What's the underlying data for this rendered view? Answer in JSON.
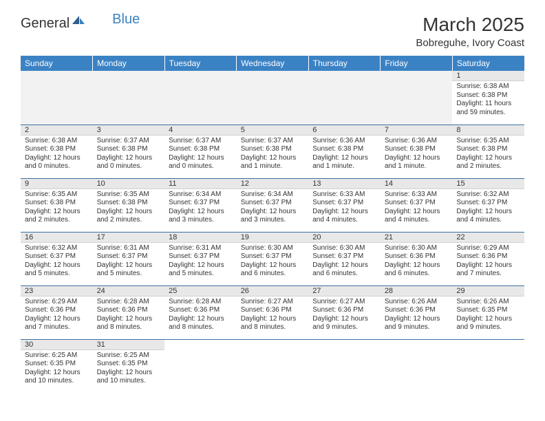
{
  "brand": {
    "part1": "General",
    "part2": "Blue"
  },
  "title": "March 2025",
  "location": "Bobreguhe, Ivory Coast",
  "colors": {
    "header_bg": "#3b82c4",
    "header_text": "#ffffff",
    "daynum_bg": "#e8e8e8",
    "week_divider": "#3b6fa0",
    "logo_blue": "#3b82c4",
    "text": "#333333",
    "background": "#ffffff"
  },
  "typography": {
    "title_fontsize": 28,
    "location_fontsize": 15,
    "dayheader_fontsize": 12,
    "daynum_fontsize": 11,
    "body_fontsize": 10
  },
  "day_headers": [
    "Sunday",
    "Monday",
    "Tuesday",
    "Wednesday",
    "Thursday",
    "Friday",
    "Saturday"
  ],
  "weeks": [
    [
      null,
      null,
      null,
      null,
      null,
      null,
      {
        "n": "1",
        "sunrise": "Sunrise: 6:38 AM",
        "sunset": "Sunset: 6:38 PM",
        "daylight": "Daylight: 11 hours and 59 minutes."
      }
    ],
    [
      {
        "n": "2",
        "sunrise": "Sunrise: 6:38 AM",
        "sunset": "Sunset: 6:38 PM",
        "daylight": "Daylight: 12 hours and 0 minutes."
      },
      {
        "n": "3",
        "sunrise": "Sunrise: 6:37 AM",
        "sunset": "Sunset: 6:38 PM",
        "daylight": "Daylight: 12 hours and 0 minutes."
      },
      {
        "n": "4",
        "sunrise": "Sunrise: 6:37 AM",
        "sunset": "Sunset: 6:38 PM",
        "daylight": "Daylight: 12 hours and 0 minutes."
      },
      {
        "n": "5",
        "sunrise": "Sunrise: 6:37 AM",
        "sunset": "Sunset: 6:38 PM",
        "daylight": "Daylight: 12 hours and 1 minute."
      },
      {
        "n": "6",
        "sunrise": "Sunrise: 6:36 AM",
        "sunset": "Sunset: 6:38 PM",
        "daylight": "Daylight: 12 hours and 1 minute."
      },
      {
        "n": "7",
        "sunrise": "Sunrise: 6:36 AM",
        "sunset": "Sunset: 6:38 PM",
        "daylight": "Daylight: 12 hours and 1 minute."
      },
      {
        "n": "8",
        "sunrise": "Sunrise: 6:35 AM",
        "sunset": "Sunset: 6:38 PM",
        "daylight": "Daylight: 12 hours and 2 minutes."
      }
    ],
    [
      {
        "n": "9",
        "sunrise": "Sunrise: 6:35 AM",
        "sunset": "Sunset: 6:38 PM",
        "daylight": "Daylight: 12 hours and 2 minutes."
      },
      {
        "n": "10",
        "sunrise": "Sunrise: 6:35 AM",
        "sunset": "Sunset: 6:38 PM",
        "daylight": "Daylight: 12 hours and 2 minutes."
      },
      {
        "n": "11",
        "sunrise": "Sunrise: 6:34 AM",
        "sunset": "Sunset: 6:37 PM",
        "daylight": "Daylight: 12 hours and 3 minutes."
      },
      {
        "n": "12",
        "sunrise": "Sunrise: 6:34 AM",
        "sunset": "Sunset: 6:37 PM",
        "daylight": "Daylight: 12 hours and 3 minutes."
      },
      {
        "n": "13",
        "sunrise": "Sunrise: 6:33 AM",
        "sunset": "Sunset: 6:37 PM",
        "daylight": "Daylight: 12 hours and 4 minutes."
      },
      {
        "n": "14",
        "sunrise": "Sunrise: 6:33 AM",
        "sunset": "Sunset: 6:37 PM",
        "daylight": "Daylight: 12 hours and 4 minutes."
      },
      {
        "n": "15",
        "sunrise": "Sunrise: 6:32 AM",
        "sunset": "Sunset: 6:37 PM",
        "daylight": "Daylight: 12 hours and 4 minutes."
      }
    ],
    [
      {
        "n": "16",
        "sunrise": "Sunrise: 6:32 AM",
        "sunset": "Sunset: 6:37 PM",
        "daylight": "Daylight: 12 hours and 5 minutes."
      },
      {
        "n": "17",
        "sunrise": "Sunrise: 6:31 AM",
        "sunset": "Sunset: 6:37 PM",
        "daylight": "Daylight: 12 hours and 5 minutes."
      },
      {
        "n": "18",
        "sunrise": "Sunrise: 6:31 AM",
        "sunset": "Sunset: 6:37 PM",
        "daylight": "Daylight: 12 hours and 5 minutes."
      },
      {
        "n": "19",
        "sunrise": "Sunrise: 6:30 AM",
        "sunset": "Sunset: 6:37 PM",
        "daylight": "Daylight: 12 hours and 6 minutes."
      },
      {
        "n": "20",
        "sunrise": "Sunrise: 6:30 AM",
        "sunset": "Sunset: 6:37 PM",
        "daylight": "Daylight: 12 hours and 6 minutes."
      },
      {
        "n": "21",
        "sunrise": "Sunrise: 6:30 AM",
        "sunset": "Sunset: 6:36 PM",
        "daylight": "Daylight: 12 hours and 6 minutes."
      },
      {
        "n": "22",
        "sunrise": "Sunrise: 6:29 AM",
        "sunset": "Sunset: 6:36 PM",
        "daylight": "Daylight: 12 hours and 7 minutes."
      }
    ],
    [
      {
        "n": "23",
        "sunrise": "Sunrise: 6:29 AM",
        "sunset": "Sunset: 6:36 PM",
        "daylight": "Daylight: 12 hours and 7 minutes."
      },
      {
        "n": "24",
        "sunrise": "Sunrise: 6:28 AM",
        "sunset": "Sunset: 6:36 PM",
        "daylight": "Daylight: 12 hours and 8 minutes."
      },
      {
        "n": "25",
        "sunrise": "Sunrise: 6:28 AM",
        "sunset": "Sunset: 6:36 PM",
        "daylight": "Daylight: 12 hours and 8 minutes."
      },
      {
        "n": "26",
        "sunrise": "Sunrise: 6:27 AM",
        "sunset": "Sunset: 6:36 PM",
        "daylight": "Daylight: 12 hours and 8 minutes."
      },
      {
        "n": "27",
        "sunrise": "Sunrise: 6:27 AM",
        "sunset": "Sunset: 6:36 PM",
        "daylight": "Daylight: 12 hours and 9 minutes."
      },
      {
        "n": "28",
        "sunrise": "Sunrise: 6:26 AM",
        "sunset": "Sunset: 6:36 PM",
        "daylight": "Daylight: 12 hours and 9 minutes."
      },
      {
        "n": "29",
        "sunrise": "Sunrise: 6:26 AM",
        "sunset": "Sunset: 6:35 PM",
        "daylight": "Daylight: 12 hours and 9 minutes."
      }
    ],
    [
      {
        "n": "30",
        "sunrise": "Sunrise: 6:25 AM",
        "sunset": "Sunset: 6:35 PM",
        "daylight": "Daylight: 12 hours and 10 minutes."
      },
      {
        "n": "31",
        "sunrise": "Sunrise: 6:25 AM",
        "sunset": "Sunset: 6:35 PM",
        "daylight": "Daylight: 12 hours and 10 minutes."
      },
      null,
      null,
      null,
      null,
      null
    ]
  ]
}
